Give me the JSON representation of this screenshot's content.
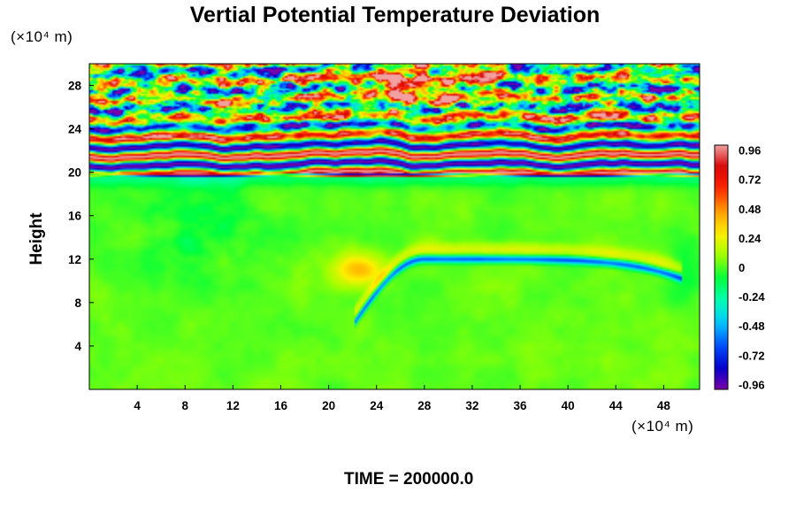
{
  "chart_data": {
    "type": "heatmap",
    "title": "Vertial Potential Temperature Deviation",
    "ylabel": "Height",
    "x_unit": "(×10⁴ m)",
    "y_unit": "(×10⁴ m)",
    "footer": "TIME = 200000.0",
    "xlim": [
      0,
      51
    ],
    "ylim": [
      0,
      30
    ],
    "x_ticks": [
      4,
      8,
      12,
      16,
      20,
      24,
      28,
      32,
      36,
      40,
      44,
      48
    ],
    "y_ticks": [
      4,
      8,
      12,
      16,
      20,
      24,
      28
    ],
    "colorbar": {
      "range": [
        -1.0,
        1.0
      ],
      "tick_values": [
        0.96,
        0.72,
        0.48,
        0.24,
        0,
        -0.24,
        -0.48,
        -0.72,
        -0.96
      ],
      "tick_labels": [
        "0.96",
        "0.72",
        "0.48",
        "0.24",
        "0",
        "-0.24",
        "-0.48",
        "-0.72",
        "-0.96"
      ]
    },
    "colormap_stops": [
      "#7a00a8",
      "#0000cc",
      "#0050ff",
      "#00c8ff",
      "#00ffb4",
      "#00ff3c",
      "#9cff00",
      "#fff000",
      "#ffa000",
      "#ff2800",
      "#d80000",
      "#f2a0a0"
    ],
    "fields": {
      "background_value": 0.02,
      "stratosphere_bottom": 19.5,
      "stratosphere_top": 30,
      "banding_amplitude": 1.0,
      "cold_feature": {
        "x_start": 22.2,
        "y_start": 6.2,
        "x_peak": 28,
        "y_peak": 12,
        "x_end": 49.5,
        "y_end": 10.2,
        "value": -0.65
      },
      "warm_patch": {
        "x": 22.5,
        "y": 11,
        "value": 0.35
      },
      "warm_region_upper": {
        "x": 27,
        "y": 28,
        "value": 0.95
      }
    }
  }
}
